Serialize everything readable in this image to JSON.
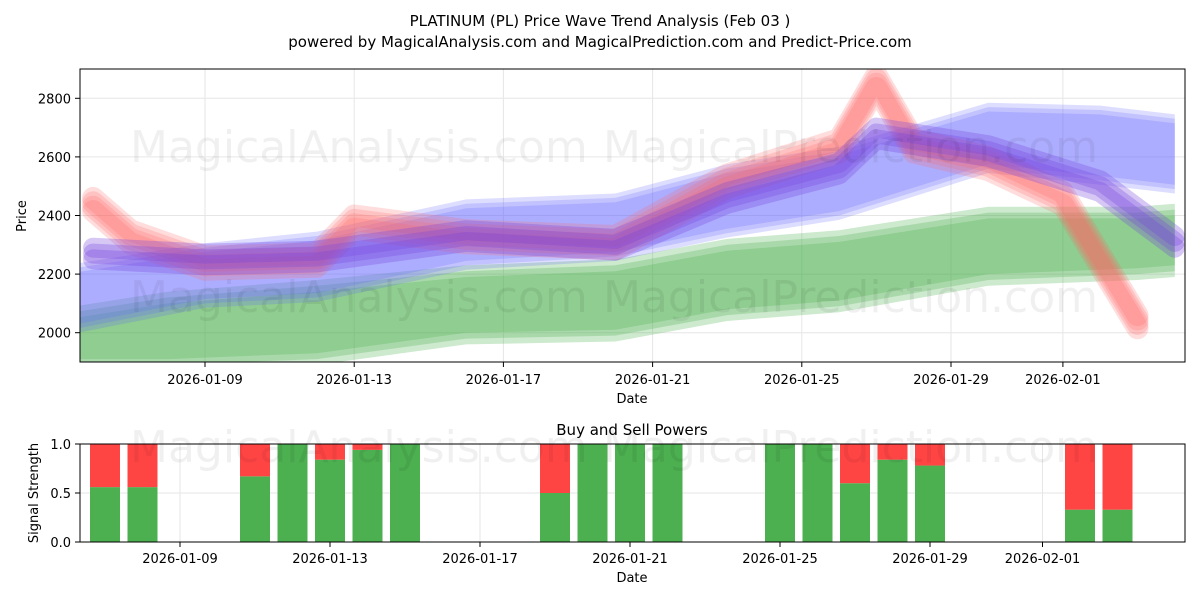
{
  "title_line1": "PLATINUM (PL) Price Wave Trend Analysis (Feb 03 )",
  "title_line2": "powered by MagicalAnalysis.com and MagicalPrediction.com and Predict-Price.com",
  "watermarks": [
    "MagicalAnalysis.com",
    "MagicalPrediction.com"
  ],
  "colors": {
    "up_band": "#4caf50",
    "blue_band": "#6666ff",
    "red_band": "#ff6666",
    "buy": "#4caf50",
    "sell": "#ff4444",
    "grid": "#e6e6e6"
  },
  "chart_data": [
    {
      "type": "area",
      "title": "",
      "xlabel": "Date",
      "ylabel": "Price",
      "x_range": [
        "2026-01-05",
        "2026-02-04"
      ],
      "ylim": [
        1900,
        2900
      ],
      "yticks": [
        2000,
        2200,
        2400,
        2600,
        2800
      ],
      "xticks": [
        "2026-01-09",
        "2026-01-13",
        "2026-01-17",
        "2026-01-21",
        "2026-01-25",
        "2026-01-29",
        "2026-02-01"
      ],
      "series": [
        {
          "name": "green-wave-band",
          "color": "#4caf50",
          "dates": [
            "2026-01-05",
            "2026-01-08",
            "2026-01-12",
            "2026-01-16",
            "2026-01-20",
            "2026-01-23",
            "2026-01-26",
            "2026-01-30",
            "2026-02-03",
            "2026-02-04"
          ],
          "upper": [
            2060,
            2120,
            2160,
            2210,
            2230,
            2300,
            2330,
            2410,
            2410,
            2420
          ],
          "lower": [
            1890,
            1890,
            1910,
            1980,
            1990,
            2060,
            2090,
            2180,
            2200,
            2210
          ]
        },
        {
          "name": "blue-wave-band",
          "color": "#6666ff",
          "dates": [
            "2026-01-05",
            "2026-01-09",
            "2026-01-12",
            "2026-01-16",
            "2026-01-20",
            "2026-01-23",
            "2026-01-26",
            "2026-01-30",
            "2026-02-02",
            "2026-02-04"
          ],
          "upper": [
            2210,
            2290,
            2330,
            2440,
            2460,
            2560,
            2620,
            2770,
            2760,
            2730
          ],
          "lower": [
            2000,
            2100,
            2120,
            2230,
            2260,
            2340,
            2400,
            2560,
            2520,
            2490
          ]
        },
        {
          "name": "red-wave-path",
          "color": "#ff6666",
          "dates": [
            "2026-01-06",
            "2026-01-07",
            "2026-01-09",
            "2026-01-12",
            "2026-01-13",
            "2026-01-16",
            "2026-01-20",
            "2026-01-23",
            "2026-01-26",
            "2026-01-27",
            "2026-01-28",
            "2026-01-30",
            "2026-02-01",
            "2026-02-03"
          ],
          "values": [
            2440,
            2330,
            2240,
            2250,
            2380,
            2330,
            2310,
            2520,
            2640,
            2860,
            2640,
            2580,
            2460,
            2040
          ]
        },
        {
          "name": "purple-wave-path",
          "color": "#7744dd",
          "dates": [
            "2026-01-06",
            "2026-01-09",
            "2026-01-12",
            "2026-01-16",
            "2026-01-20",
            "2026-01-23",
            "2026-01-26",
            "2026-01-27",
            "2026-01-30",
            "2026-02-02",
            "2026-02-04"
          ],
          "values": [
            2270,
            2250,
            2260,
            2330,
            2300,
            2460,
            2560,
            2680,
            2620,
            2500,
            2310
          ]
        }
      ]
    },
    {
      "type": "bar",
      "title": "Buy and Sell Powers",
      "xlabel": "Date",
      "ylabel": "Signal Strength",
      "ylim": [
        0,
        1
      ],
      "yticks": [
        "0.0",
        "0.5",
        "1.0"
      ],
      "xticks": [
        "2026-01-09",
        "2026-01-13",
        "2026-01-17",
        "2026-01-21",
        "2026-01-25",
        "2026-01-29",
        "2026-02-01"
      ],
      "dates": [
        "2026-01-07",
        "2026-01-08",
        "2026-01-11",
        "2026-01-12",
        "2026-01-13",
        "2026-01-14",
        "2026-01-15",
        "2026-01-19",
        "2026-01-20",
        "2026-01-21",
        "2026-01-22",
        "2026-01-25",
        "2026-01-26",
        "2026-01-27",
        "2026-01-28",
        "2026-01-29",
        "2026-02-02",
        "2026-02-03"
      ],
      "buy": [
        0.56,
        0.56,
        0.67,
        1.0,
        0.84,
        0.94,
        1.0,
        0.5,
        1.0,
        1.0,
        1.0,
        1.0,
        1.0,
        0.6,
        0.84,
        0.78,
        0.33,
        0.33
      ],
      "sell": [
        0.44,
        0.44,
        0.33,
        0.0,
        0.16,
        0.06,
        0.0,
        0.5,
        0.0,
        0.0,
        0.0,
        0.0,
        0.0,
        0.4,
        0.16,
        0.22,
        0.67,
        0.67
      ]
    }
  ]
}
